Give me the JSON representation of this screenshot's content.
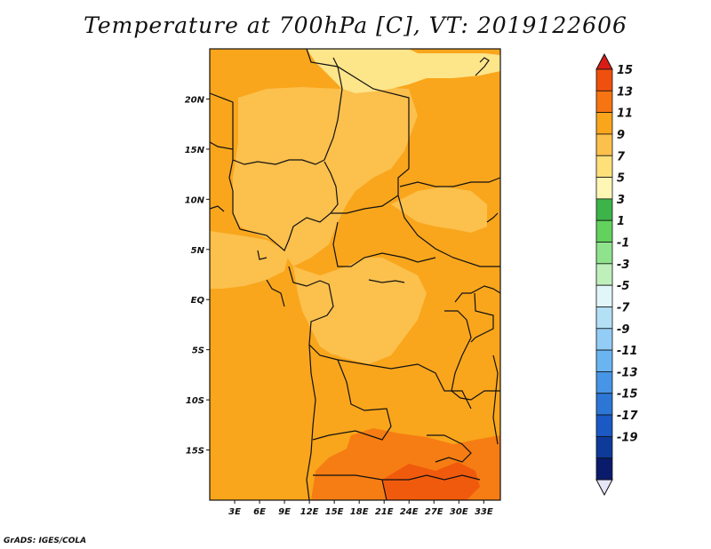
{
  "title": "Temperature at 700hPa [C], VT: 2019122606",
  "credit": "GrADS: IGES/COLA",
  "map": {
    "lon_range": [
      0,
      35
    ],
    "lat_range": [
      -20,
      25
    ],
    "lat_ticks": [
      {
        "value": 20,
        "label": "20N"
      },
      {
        "value": 15,
        "label": "15N"
      },
      {
        "value": 10,
        "label": "10N"
      },
      {
        "value": 5,
        "label": "5N"
      },
      {
        "value": 0,
        "label": "EQ"
      },
      {
        "value": -5,
        "label": "5S"
      },
      {
        "value": -10,
        "label": "10S"
      },
      {
        "value": -15,
        "label": "15S"
      }
    ],
    "lon_ticks": [
      {
        "value": 3,
        "label": "3E"
      },
      {
        "value": 6,
        "label": "6E"
      },
      {
        "value": 9,
        "label": "9E"
      },
      {
        "value": 12,
        "label": "12E"
      },
      {
        "value": 15,
        "label": "15E"
      },
      {
        "value": 18,
        "label": "18E"
      },
      {
        "value": 21,
        "label": "21E"
      },
      {
        "value": 24,
        "label": "24E"
      },
      {
        "value": 27,
        "label": "27E"
      },
      {
        "value": 30,
        "label": "30E"
      },
      {
        "value": 33,
        "label": "33E"
      }
    ],
    "dominant_class": "9 to 11 C",
    "colors": {
      "c5_7": "#fde58a",
      "c7_9": "#fcc04d",
      "c9_11": "#f9a61c",
      "c11_13": "#f67d13",
      "c13_15": "#f05a0d",
      "boundary": "#111111"
    }
  },
  "colorbar": {
    "labels": [
      "15",
      "13",
      "11",
      "9",
      "7",
      "5",
      "3",
      "1",
      "-1",
      "-3",
      "-5",
      "-7",
      "-9",
      "-11",
      "-13",
      "-15",
      "-17",
      "-19"
    ],
    "colors": [
      "#f0500d",
      "#f67512",
      "#f9a61c",
      "#fcc04d",
      "#fde07a",
      "#fef6b4",
      "#3cb449",
      "#63d15e",
      "#8ee38c",
      "#bff0bc",
      "#e1f6f8",
      "#b3e0f5",
      "#93cdf5",
      "#6ab5f0",
      "#4795e6",
      "#2c76d6",
      "#1b59c4",
      "#0e3a9a",
      "#0a1b6b"
    ],
    "top_triangle_color": "#d91c16",
    "bottom_triangle_color": "#e6e6f8"
  }
}
